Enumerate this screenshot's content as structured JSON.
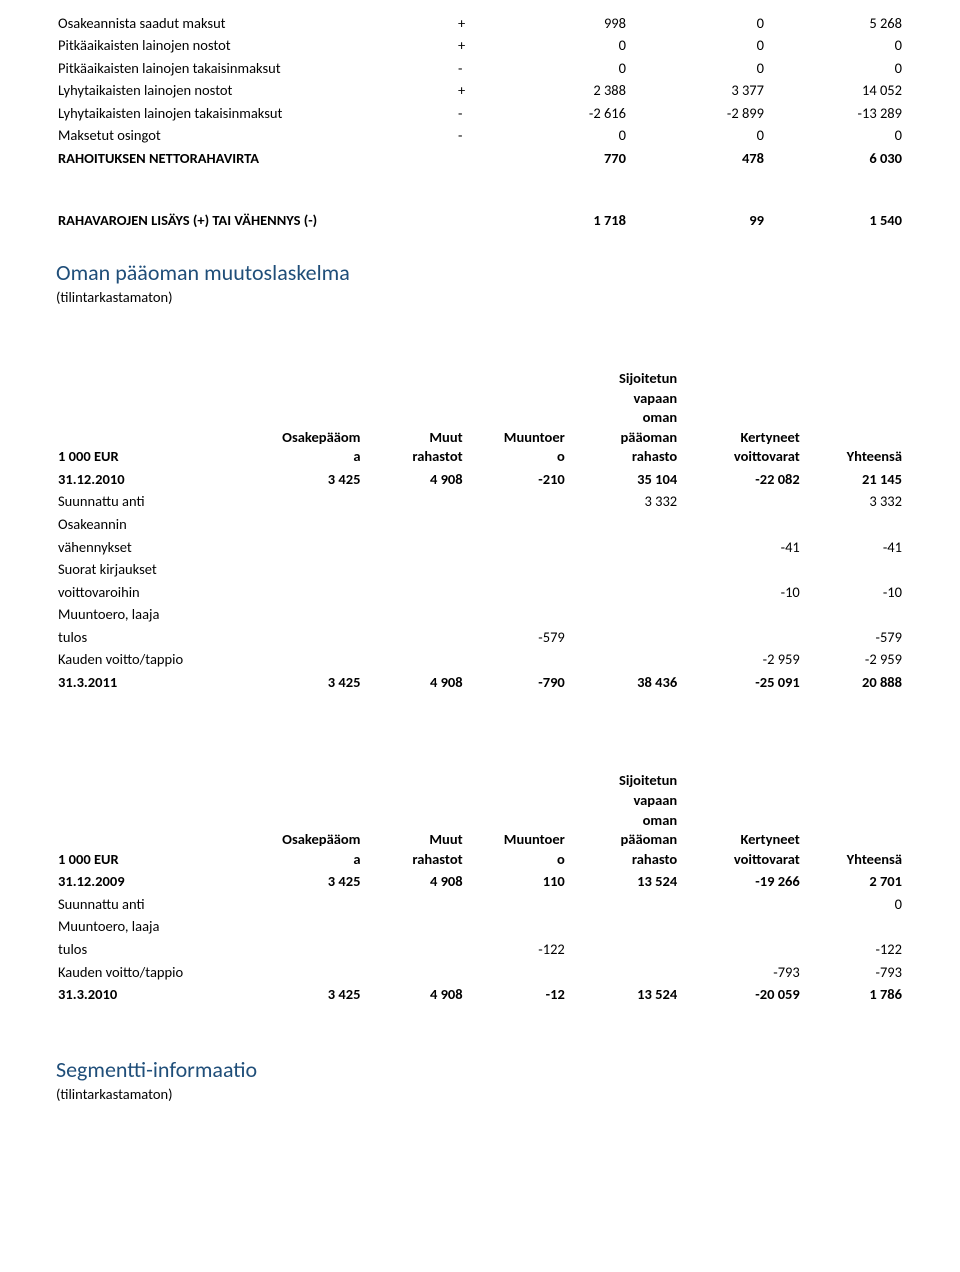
{
  "topRows": [
    {
      "label": "Osakeannista saadut maksut",
      "sym": "+",
      "c1": "998",
      "c2": "0",
      "c3": "5 268",
      "bold": false
    },
    {
      "label": "Pitkäaikaisten lainojen nostot",
      "sym": "+",
      "c1": "0",
      "c2": "0",
      "c3": "0",
      "bold": false
    },
    {
      "label": "Pitkäaikaisten lainojen takaisinmaksut",
      "sym": "-",
      "c1": "0",
      "c2": "0",
      "c3": "0",
      "bold": false
    },
    {
      "label": "Lyhytaikaisten lainojen nostot",
      "sym": "+",
      "c1": "2 388",
      "c2": "3 377",
      "c3": "14 052",
      "bold": false
    },
    {
      "label": "Lyhytaikaisten lainojen takaisinmaksut",
      "sym": "-",
      "c1": "-2 616",
      "c2": "-2 899",
      "c3": "-13 289",
      "bold": false
    },
    {
      "label": "Maksetut osingot",
      "sym": "-",
      "c1": "0",
      "c2": "0",
      "c3": "0",
      "bold": false
    },
    {
      "label": "RAHOITUKSEN NETTORAHAVIRTA",
      "sym": "",
      "c1": "770",
      "c2": "478",
      "c3": "6 030",
      "bold": true
    }
  ],
  "midRow": {
    "label": "RAHAVAROJEN LISÄYS (+) TAI VÄHENNYS (-)",
    "c1": "1 718",
    "c2": "99",
    "c3": "1 540"
  },
  "topColsWidth": {
    "label": 400,
    "sym": 34
  },
  "section1": {
    "title": "Oman pääoman muutoslaskelma",
    "subtitle": "(tilintarkastamaton)"
  },
  "eqHeaders": {
    "c0": "1 000 EUR",
    "c1a": "Osakepääom",
    "c1b": "a",
    "c2a": "Muut",
    "c2b": "rahastot",
    "c3a": "Muuntoer",
    "c3b": "o",
    "c4a": "Sijoitetun",
    "c4b": "vapaan",
    "c4c": "oman",
    "c4d": "pääoman",
    "c4e": "rahasto",
    "c5a": "Kertyneet",
    "c5b": "voittovarat",
    "c6": "Yhteensä"
  },
  "eq1": {
    "rows": [
      {
        "label": "31.12.2010",
        "c1": "3 425",
        "c2": "4 908",
        "c3": "-210",
        "c4": "35 104",
        "c5": "-22 082",
        "c6": "21 145",
        "bold": true
      },
      {
        "label": "Suunnattu anti",
        "c1": "",
        "c2": "",
        "c3": "",
        "c4": "3 332",
        "c5": "",
        "c6": "3 332",
        "bold": false
      },
      {
        "label": "Osakeannin",
        "sub": true
      },
      {
        "label": "vähennykset",
        "c1": "",
        "c2": "",
        "c3": "",
        "c4": "",
        "c5": "-41",
        "c6": "-41",
        "bold": false
      },
      {
        "label": "Suorat kirjaukset",
        "sub": true
      },
      {
        "label": "voittovaroihin",
        "c1": "",
        "c2": "",
        "c3": "",
        "c4": "",
        "c5": "-10",
        "c6": "-10",
        "bold": false
      },
      {
        "label": "Muuntoero, laaja",
        "sub": true
      },
      {
        "label": "tulos",
        "c1": "",
        "c2": "",
        "c3": "-579",
        "c4": "",
        "c5": "",
        "c6": "-579",
        "bold": false
      },
      {
        "label": "Kauden voitto/tappio",
        "c1": "",
        "c2": "",
        "c3": "",
        "c4": "",
        "c5": "-2 959",
        "c6": "-2 959",
        "bold": false
      },
      {
        "label": "31.3.2011",
        "c1": "3 425",
        "c2": "4 908",
        "c3": "-790",
        "c4": "38 436",
        "c5": "-25 091",
        "c6": "20 888",
        "bold": true
      }
    ]
  },
  "eq2": {
    "rows": [
      {
        "label": "31.12.2009",
        "c1": "3 425",
        "c2": "4 908",
        "c3": "110",
        "c4": "13 524",
        "c5": "-19 266",
        "c6": "2 701",
        "bold": true
      },
      {
        "label": "Suunnattu anti",
        "c1": "",
        "c2": "",
        "c3": "",
        "c4": "",
        "c5": "",
        "c6": "0",
        "bold": false
      },
      {
        "label": "Muuntoero, laaja",
        "sub": true
      },
      {
        "label": "tulos",
        "c1": "",
        "c2": "",
        "c3": "-122",
        "c4": "",
        "c5": "",
        "c6": "-122",
        "bold": false
      },
      {
        "label": "Kauden voitto/tappio",
        "c1": "",
        "c2": "",
        "c3": "",
        "c4": "",
        "c5": "-793",
        "c6": "-793",
        "bold": false
      },
      {
        "label": "31.3.2010",
        "c1": "3 425",
        "c2": "4 908",
        "c3": "-12",
        "c4": "13 524",
        "c5": "-20 059",
        "c6": "1 786",
        "bold": true
      }
    ]
  },
  "section2": {
    "title": "Segmentti-informaatio",
    "subtitle": "(tilintarkastamaton)"
  },
  "colors": {
    "headingBlue": "#1f4e79",
    "text": "#000000",
    "background": "#ffffff"
  }
}
